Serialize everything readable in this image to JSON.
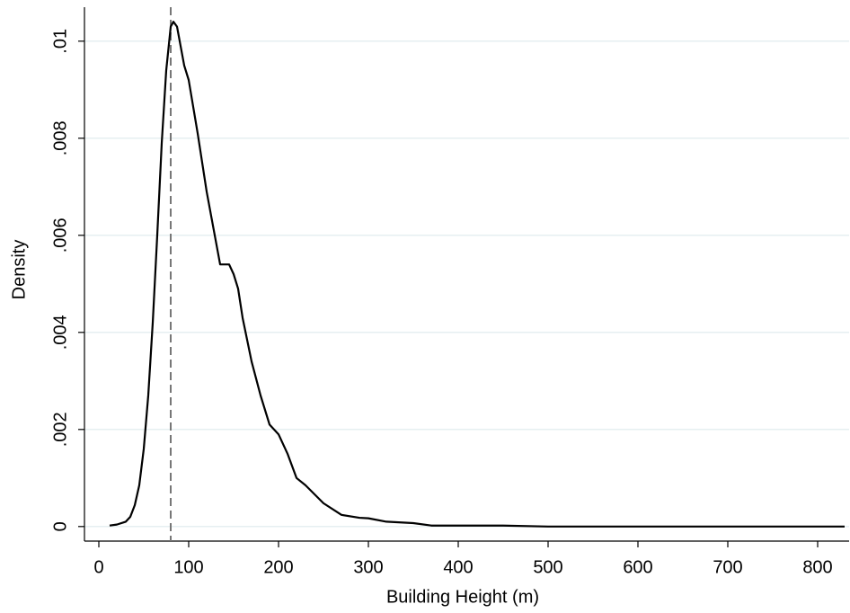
{
  "chart_data": {
    "type": "line",
    "x_label": "Building Height (m)",
    "y_label": "Density",
    "x": [
      12,
      20,
      30,
      35,
      40,
      45,
      50,
      55,
      60,
      65,
      70,
      75,
      80,
      83,
      87,
      90,
      95,
      100,
      110,
      120,
      130,
      135,
      140,
      145,
      150,
      155,
      160,
      170,
      180,
      190,
      200,
      210,
      220,
      230,
      250,
      270,
      290,
      300,
      320,
      350,
      370,
      400,
      450,
      500,
      600,
      700,
      830
    ],
    "values": [
      2e-05,
      4e-05,
      0.0001,
      0.0002,
      0.00044,
      0.00085,
      0.0016,
      0.0027,
      0.0042,
      0.006,
      0.0079,
      0.0094,
      0.0103,
      0.0104,
      0.0103,
      0.01,
      0.0095,
      0.0092,
      0.0081,
      0.0069,
      0.0059,
      0.0054,
      0.0054,
      0.0054,
      0.0052,
      0.0049,
      0.0043,
      0.0034,
      0.0027,
      0.0021,
      0.0019,
      0.0015,
      0.001,
      0.00085,
      0.00048,
      0.00024,
      0.00018,
      0.00017,
      0.0001,
      7e-05,
      2e-05,
      2e-05,
      2e-05,
      0,
      0,
      0,
      0
    ],
    "color": "#000000",
    "xline": 80,
    "xline_color": "#777777",
    "xlim": [
      -16,
      835
    ],
    "xticks": [
      0,
      100,
      200,
      300,
      400,
      500,
      600,
      700,
      800
    ],
    "ylim": [
      -0.0003,
      0.0107
    ],
    "yticks": [
      0,
      {
        "value": 0.002,
        "label": ".002"
      },
      {
        "value": 0.004,
        "label": ".004"
      },
      {
        "value": 0.006,
        "label": ".006"
      },
      {
        "value": 0.008,
        "label": ".008"
      },
      {
        "value": 0.01,
        "label": ".01"
      }
    ],
    "grid": true,
    "grid_color": "#e6eff1"
  }
}
